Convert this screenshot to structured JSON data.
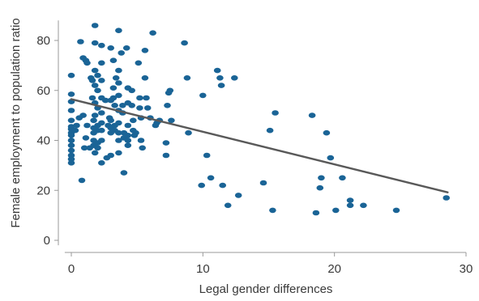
{
  "chart_data": {
    "type": "scatter",
    "title": "",
    "xlabel": "Legal gender differences",
    "ylabel": "Female employment to population ratio",
    "xlim": [
      -0.5,
      30
    ],
    "ylim": [
      -2,
      88
    ],
    "x_ticks": [
      0,
      10,
      20,
      30
    ],
    "y_ticks": [
      0,
      20,
      40,
      60,
      80
    ],
    "grid": false,
    "legend": "none",
    "point_color": "#1a6496",
    "trendline_color": "#595959",
    "trendline": {
      "x": [
        0,
        28.6
      ],
      "y": [
        56.5,
        19.2
      ]
    },
    "series": [
      {
        "points": [
          [
            0,
            58.5
          ],
          [
            0,
            55.5
          ],
          [
            0,
            52
          ],
          [
            0,
            48
          ],
          [
            0,
            45.5
          ],
          [
            0,
            44.5
          ],
          [
            0,
            43
          ],
          [
            0,
            42
          ],
          [
            0,
            40
          ],
          [
            0,
            38
          ],
          [
            0,
            36
          ],
          [
            0,
            34
          ],
          [
            0,
            32.5
          ],
          [
            0,
            31
          ],
          [
            0,
            66
          ],
          [
            0.3,
            44
          ],
          [
            0.4,
            46
          ],
          [
            0.6,
            49
          ],
          [
            0.8,
            24
          ],
          [
            0.9,
            50
          ],
          [
            1,
            37
          ],
          [
            1.1,
            41
          ],
          [
            1.2,
            46
          ],
          [
            0.7,
            79.5
          ],
          [
            0.9,
            73
          ],
          [
            1.1,
            72
          ],
          [
            1.2,
            71
          ],
          [
            1.4,
            37
          ],
          [
            1.5,
            65
          ],
          [
            1.6,
            64
          ],
          [
            1.6,
            57
          ],
          [
            1.7,
            48
          ],
          [
            1.7,
            45
          ],
          [
            1.7,
            43
          ],
          [
            1.7,
            40
          ],
          [
            1.7,
            38
          ],
          [
            1.8,
            86
          ],
          [
            1.8,
            79
          ],
          [
            1.8,
            68
          ],
          [
            1.8,
            62
          ],
          [
            1.8,
            55
          ],
          [
            1.8,
            50
          ],
          [
            1.8,
            35
          ],
          [
            2,
            66
          ],
          [
            2,
            60
          ],
          [
            2,
            53
          ],
          [
            2,
            46
          ],
          [
            2,
            44
          ],
          [
            2,
            39
          ],
          [
            2,
            37
          ],
          [
            2.3,
            78
          ],
          [
            2.3,
            71
          ],
          [
            2.3,
            64
          ],
          [
            2.3,
            57
          ],
          [
            2.3,
            51
          ],
          [
            2.3,
            47
          ],
          [
            2.3,
            44
          ],
          [
            2.3,
            40
          ],
          [
            2.3,
            31
          ],
          [
            2.6,
            56
          ],
          [
            2.7,
            33
          ],
          [
            2.8,
            46
          ],
          [
            2.9,
            49
          ],
          [
            3,
            77
          ],
          [
            3,
            56
          ],
          [
            3,
            48
          ],
          [
            3,
            45
          ],
          [
            3,
            43
          ],
          [
            3,
            34
          ],
          [
            3.2,
            72
          ],
          [
            3.2,
            61
          ],
          [
            3.2,
            57
          ],
          [
            3.3,
            54
          ],
          [
            3.3,
            46
          ],
          [
            3.3,
            44
          ],
          [
            3.4,
            65
          ],
          [
            3.6,
            84
          ],
          [
            3.6,
            68
          ],
          [
            3.6,
            63
          ],
          [
            3.6,
            58
          ],
          [
            3.6,
            52
          ],
          [
            3.6,
            47
          ],
          [
            3.6,
            43
          ],
          [
            3.6,
            40
          ],
          [
            3.6,
            35
          ],
          [
            3.8,
            75
          ],
          [
            3.9,
            54
          ],
          [
            3.9,
            51
          ],
          [
            4,
            43
          ],
          [
            4,
            41
          ],
          [
            4,
            27
          ],
          [
            4.2,
            77
          ],
          [
            4.3,
            61
          ],
          [
            4.3,
            55
          ],
          [
            4.3,
            46
          ],
          [
            4.3,
            42
          ],
          [
            4.3,
            40
          ],
          [
            4.3,
            38
          ],
          [
            4.6,
            60
          ],
          [
            4.6,
            54
          ],
          [
            4.7,
            48
          ],
          [
            4.7,
            44
          ],
          [
            4.8,
            42
          ],
          [
            4.9,
            43
          ],
          [
            5.1,
            71
          ],
          [
            5.2,
            57
          ],
          [
            5.2,
            53
          ],
          [
            5.3,
            49
          ],
          [
            5.3,
            40
          ],
          [
            5.4,
            37
          ],
          [
            5.6,
            76
          ],
          [
            5.6,
            65
          ],
          [
            5.7,
            57
          ],
          [
            5.8,
            53
          ],
          [
            6,
            49
          ],
          [
            6.2,
            83
          ],
          [
            6.4,
            46
          ],
          [
            6.5,
            47
          ],
          [
            6.7,
            48
          ],
          [
            7.2,
            39
          ],
          [
            7.2,
            34
          ],
          [
            7.3,
            54
          ],
          [
            7.4,
            59
          ],
          [
            7.5,
            60
          ],
          [
            7.6,
            48
          ],
          [
            8.6,
            79
          ],
          [
            8.8,
            65
          ],
          [
            8.9,
            43
          ],
          [
            9.9,
            22
          ],
          [
            10,
            58
          ],
          [
            10.3,
            34
          ],
          [
            10.6,
            25
          ],
          [
            11.1,
            68
          ],
          [
            11.3,
            65
          ],
          [
            11.4,
            62
          ],
          [
            11.5,
            22
          ],
          [
            11.9,
            14
          ],
          [
            12.4,
            65
          ],
          [
            12.7,
            18
          ],
          [
            14.6,
            23
          ],
          [
            15.1,
            44
          ],
          [
            15.3,
            12
          ],
          [
            15.5,
            51
          ],
          [
            18.3,
            50
          ],
          [
            18.6,
            11
          ],
          [
            18.9,
            21
          ],
          [
            19,
            25
          ],
          [
            19.4,
            43
          ],
          [
            19.7,
            33
          ],
          [
            20.1,
            12
          ],
          [
            20.6,
            25
          ],
          [
            21.2,
            16
          ],
          [
            21.2,
            14
          ],
          [
            22.2,
            14
          ],
          [
            24.7,
            12
          ],
          [
            28.5,
            17
          ]
        ]
      }
    ]
  }
}
